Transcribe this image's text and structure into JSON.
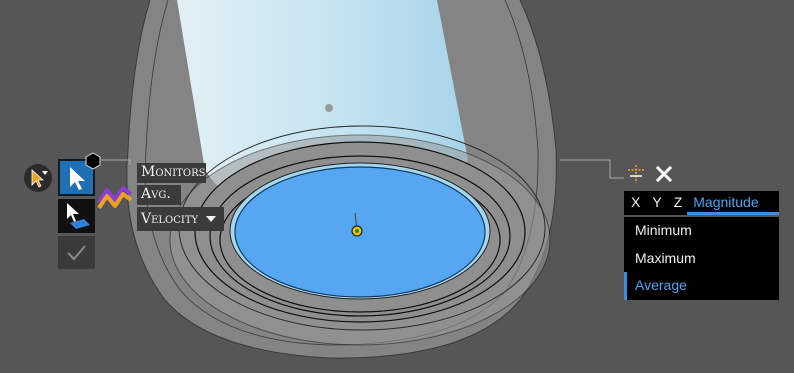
{
  "toolbar": {
    "filter_icon": "cursor-filter-icon",
    "select_icon": "cursor-arrow-icon",
    "select_face_icon": "cursor-face-icon",
    "confirm_icon": "checkmark-icon",
    "monitor_icon": "monitor-graph-icon"
  },
  "monitor": {
    "title": "Monitors",
    "mode": "Avg.",
    "quantity": "Velocity"
  },
  "panel": {
    "axis_tabs": [
      "X",
      "Y",
      "Z",
      "Magnitude"
    ],
    "active_tab": "Magnitude",
    "stats": [
      "Minimum",
      "Maximum",
      "Average"
    ],
    "selected_stat": "Average"
  },
  "colors": {
    "background": "#565656",
    "accent": "#3d8ee0",
    "face": "#55a7f2",
    "monitor_orange": "#f0a020",
    "monitor_purple": "#8a3fd8"
  }
}
